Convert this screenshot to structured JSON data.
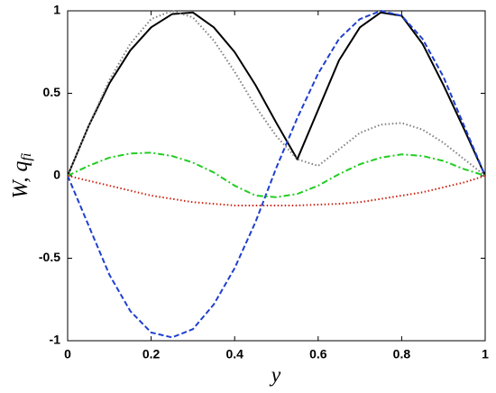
{
  "chart_data": {
    "type": "line",
    "xlabel": "y",
    "ylabel": {
      "main": "W, q",
      "sub": "fi"
    },
    "x": [
      0,
      0.05,
      0.1,
      0.15,
      0.2,
      0.25,
      0.3,
      0.35,
      0.4,
      0.45,
      0.5,
      0.55,
      0.6,
      0.65,
      0.7,
      0.75,
      0.8,
      0.85,
      0.9,
      0.95,
      1
    ],
    "series": [
      {
        "color": "#000000",
        "style": "solid",
        "values": [
          0,
          0.3,
          0.56,
          0.76,
          0.9,
          0.98,
          0.99,
          0.9,
          0.75,
          0.55,
          0.32,
          0.1,
          0.4,
          0.7,
          0.9,
          0.99,
          0.97,
          0.8,
          0.55,
          0.28,
          0
        ]
      },
      {
        "color": "#808080",
        "style": "dotted",
        "values": [
          0,
          0.3,
          0.58,
          0.8,
          0.95,
          1,
          0.96,
          0.82,
          0.63,
          0.42,
          0.24,
          0.1,
          0.06,
          0.16,
          0.26,
          0.31,
          0.32,
          0.28,
          0.2,
          0.1,
          0
        ]
      },
      {
        "color": "#1f3fd0",
        "style": "dashed",
        "values": [
          0,
          -0.3,
          -0.6,
          -0.82,
          -0.95,
          -0.98,
          -0.93,
          -0.78,
          -0.56,
          -0.28,
          0.05,
          0.35,
          0.62,
          0.83,
          0.95,
          1,
          0.97,
          0.83,
          0.6,
          0.3,
          0
        ]
      },
      {
        "color": "#22cc22",
        "style": "dashdot",
        "values": [
          0,
          0.06,
          0.11,
          0.135,
          0.14,
          0.12,
          0.08,
          0.02,
          -0.06,
          -0.12,
          -0.13,
          -0.11,
          -0.06,
          0.01,
          0.07,
          0.11,
          0.13,
          0.12,
          0.09,
          0.04,
          0
        ]
      },
      {
        "color": "#cc2211",
        "style": "dotted",
        "values": [
          0,
          -0.03,
          -0.06,
          -0.09,
          -0.12,
          -0.14,
          -0.16,
          -0.17,
          -0.18,
          -0.18,
          -0.18,
          -0.18,
          -0.175,
          -0.17,
          -0.16,
          -0.14,
          -0.12,
          -0.1,
          -0.07,
          -0.04,
          0
        ]
      }
    ],
    "xlim": [
      0,
      1
    ],
    "xticks": [
      0,
      0.2,
      0.4,
      0.6,
      0.8,
      1
    ],
    "ylim": [
      -1,
      1
    ],
    "yticks": [
      -1,
      -0.5,
      0,
      0.5,
      1
    ],
    "grid": false
  }
}
